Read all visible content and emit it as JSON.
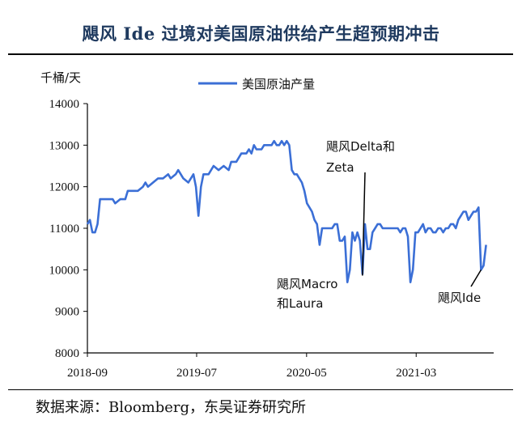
{
  "title": "飓风 Ide 过境对美国原油供给产生超预期冲击",
  "source": "数据来源：Bloomberg，东吴证券研究所",
  "colors": {
    "line": "#3b6fd6",
    "title": "#1f3a5f"
  },
  "chart_data": {
    "type": "line",
    "unit": "千桶/天",
    "ylim": [
      8000,
      14000
    ],
    "yticks": [
      8000,
      9000,
      10000,
      11000,
      12000,
      13000,
      14000
    ],
    "xlim": [
      "2018-09-07",
      "2021-10-08"
    ],
    "xticks": [
      {
        "date": "2018-09-07",
        "label": "2018-09"
      },
      {
        "date": "2019-07-07",
        "label": "2019-07"
      },
      {
        "date": "2020-05-07",
        "label": "2020-05"
      },
      {
        "date": "2021-03-07",
        "label": "2021-03"
      }
    ],
    "legend": "top",
    "grid": false,
    "series": [
      {
        "name": "美国原油产量",
        "points": [
          [
            "2018-09-07",
            11100
          ],
          [
            "2018-09-14",
            11200
          ],
          [
            "2018-09-21",
            10900
          ],
          [
            "2018-09-28",
            10900
          ],
          [
            "2018-10-05",
            11100
          ],
          [
            "2018-10-12",
            11700
          ],
          [
            "2018-10-19",
            11700
          ],
          [
            "2018-11-02",
            11700
          ],
          [
            "2018-11-16",
            11700
          ],
          [
            "2018-11-23",
            11600
          ],
          [
            "2018-12-07",
            11700
          ],
          [
            "2018-12-21",
            11700
          ],
          [
            "2018-12-28",
            11900
          ],
          [
            "2019-01-18",
            11900
          ],
          [
            "2019-01-25",
            11900
          ],
          [
            "2019-02-08",
            12000
          ],
          [
            "2019-02-15",
            12100
          ],
          [
            "2019-02-22",
            12000
          ],
          [
            "2019-03-08",
            12100
          ],
          [
            "2019-03-22",
            12200
          ],
          [
            "2019-04-05",
            12200
          ],
          [
            "2019-04-19",
            12300
          ],
          [
            "2019-04-26",
            12200
          ],
          [
            "2019-05-10",
            12300
          ],
          [
            "2019-05-17",
            12400
          ],
          [
            "2019-05-31",
            12200
          ],
          [
            "2019-06-14",
            12100
          ],
          [
            "2019-06-28",
            12300
          ],
          [
            "2019-07-05",
            12000
          ],
          [
            "2019-07-12",
            11300
          ],
          [
            "2019-07-19",
            12000
          ],
          [
            "2019-07-26",
            12300
          ],
          [
            "2019-08-09",
            12300
          ],
          [
            "2019-08-23",
            12500
          ],
          [
            "2019-09-06",
            12400
          ],
          [
            "2019-09-20",
            12500
          ],
          [
            "2019-10-04",
            12400
          ],
          [
            "2019-10-11",
            12600
          ],
          [
            "2019-10-25",
            12600
          ],
          [
            "2019-11-08",
            12800
          ],
          [
            "2019-11-22",
            12800
          ],
          [
            "2019-11-29",
            12900
          ],
          [
            "2019-12-06",
            12800
          ],
          [
            "2019-12-13",
            13000
          ],
          [
            "2019-12-20",
            12900
          ],
          [
            "2020-01-03",
            12900
          ],
          [
            "2020-01-10",
            13000
          ],
          [
            "2020-01-17",
            13000
          ],
          [
            "2020-01-24",
            13000
          ],
          [
            "2020-01-31",
            13000
          ],
          [
            "2020-02-07",
            13100
          ],
          [
            "2020-02-14",
            13000
          ],
          [
            "2020-02-21",
            13000
          ],
          [
            "2020-02-28",
            13100
          ],
          [
            "2020-03-06",
            13000
          ],
          [
            "2020-03-13",
            13100
          ],
          [
            "2020-03-20",
            13000
          ],
          [
            "2020-03-27",
            12400
          ],
          [
            "2020-04-03",
            12300
          ],
          [
            "2020-04-10",
            12300
          ],
          [
            "2020-04-17",
            12200
          ],
          [
            "2020-04-24",
            12100
          ],
          [
            "2020-05-01",
            11900
          ],
          [
            "2020-05-08",
            11600
          ],
          [
            "2020-05-15",
            11500
          ],
          [
            "2020-05-22",
            11400
          ],
          [
            "2020-05-29",
            11200
          ],
          [
            "2020-06-05",
            11100
          ],
          [
            "2020-06-12",
            10600
          ],
          [
            "2020-06-19",
            11000
          ],
          [
            "2020-06-26",
            11000
          ],
          [
            "2020-07-03",
            11000
          ],
          [
            "2020-07-10",
            11000
          ],
          [
            "2020-07-17",
            11000
          ],
          [
            "2020-07-24",
            11100
          ],
          [
            "2020-07-31",
            11100
          ],
          [
            "2020-08-07",
            10700
          ],
          [
            "2020-08-14",
            10700
          ],
          [
            "2020-08-21",
            10800
          ],
          [
            "2020-08-28",
            9700
          ],
          [
            "2020-09-04",
            10000
          ],
          [
            "2020-09-11",
            10900
          ],
          [
            "2020-09-18",
            10700
          ],
          [
            "2020-09-25",
            10900
          ],
          [
            "2020-10-02",
            10700
          ],
          [
            "2020-10-09",
            9900
          ],
          [
            "2020-10-16",
            11100
          ],
          [
            "2020-10-23",
            10500
          ],
          [
            "2020-10-30",
            10500
          ],
          [
            "2020-11-06",
            10900
          ],
          [
            "2020-11-13",
            11000
          ],
          [
            "2020-11-20",
            11100
          ],
          [
            "2020-11-27",
            11100
          ],
          [
            "2020-12-04",
            11000
          ],
          [
            "2020-12-11",
            11000
          ],
          [
            "2020-12-18",
            11000
          ],
          [
            "2020-12-25",
            11000
          ],
          [
            "2021-01-08",
            11000
          ],
          [
            "2021-01-15",
            11000
          ],
          [
            "2021-01-22",
            10900
          ],
          [
            "2021-01-29",
            11000
          ],
          [
            "2021-02-05",
            11000
          ],
          [
            "2021-02-12",
            10800
          ],
          [
            "2021-02-19",
            9700
          ],
          [
            "2021-02-26",
            10000
          ],
          [
            "2021-03-05",
            10900
          ],
          [
            "2021-03-12",
            10900
          ],
          [
            "2021-03-19",
            11000
          ],
          [
            "2021-03-26",
            11100
          ],
          [
            "2021-04-02",
            10900
          ],
          [
            "2021-04-09",
            11000
          ],
          [
            "2021-04-16",
            11000
          ],
          [
            "2021-04-23",
            10900
          ],
          [
            "2021-04-30",
            10900
          ],
          [
            "2021-05-07",
            11000
          ],
          [
            "2021-05-14",
            11000
          ],
          [
            "2021-05-21",
            10900
          ],
          [
            "2021-05-28",
            11000
          ],
          [
            "2021-06-04",
            11000
          ],
          [
            "2021-06-11",
            11100
          ],
          [
            "2021-06-18",
            11100
          ],
          [
            "2021-06-25",
            11000
          ],
          [
            "2021-07-02",
            11200
          ],
          [
            "2021-07-09",
            11300
          ],
          [
            "2021-07-16",
            11400
          ],
          [
            "2021-07-23",
            11400
          ],
          [
            "2021-07-30",
            11200
          ],
          [
            "2021-08-06",
            11300
          ],
          [
            "2021-08-13",
            11400
          ],
          [
            "2021-08-20",
            11400
          ],
          [
            "2021-08-27",
            11500
          ],
          [
            "2021-09-03",
            10000
          ],
          [
            "2021-09-10",
            10100
          ],
          [
            "2021-09-17",
            10600
          ]
        ]
      }
    ],
    "annotations": [
      {
        "lines": [
          "飓风Delta和",
          "Zeta"
        ],
        "date": "2020-10-09",
        "value": 9900
      },
      {
        "lines": [
          "飓风Macro",
          "和Laura"
        ],
        "date": "2020-08-28",
        "value": 9700
      },
      {
        "lines": [
          "飓风Ide"
        ],
        "date": "2021-09-03",
        "value": 10000
      }
    ]
  }
}
